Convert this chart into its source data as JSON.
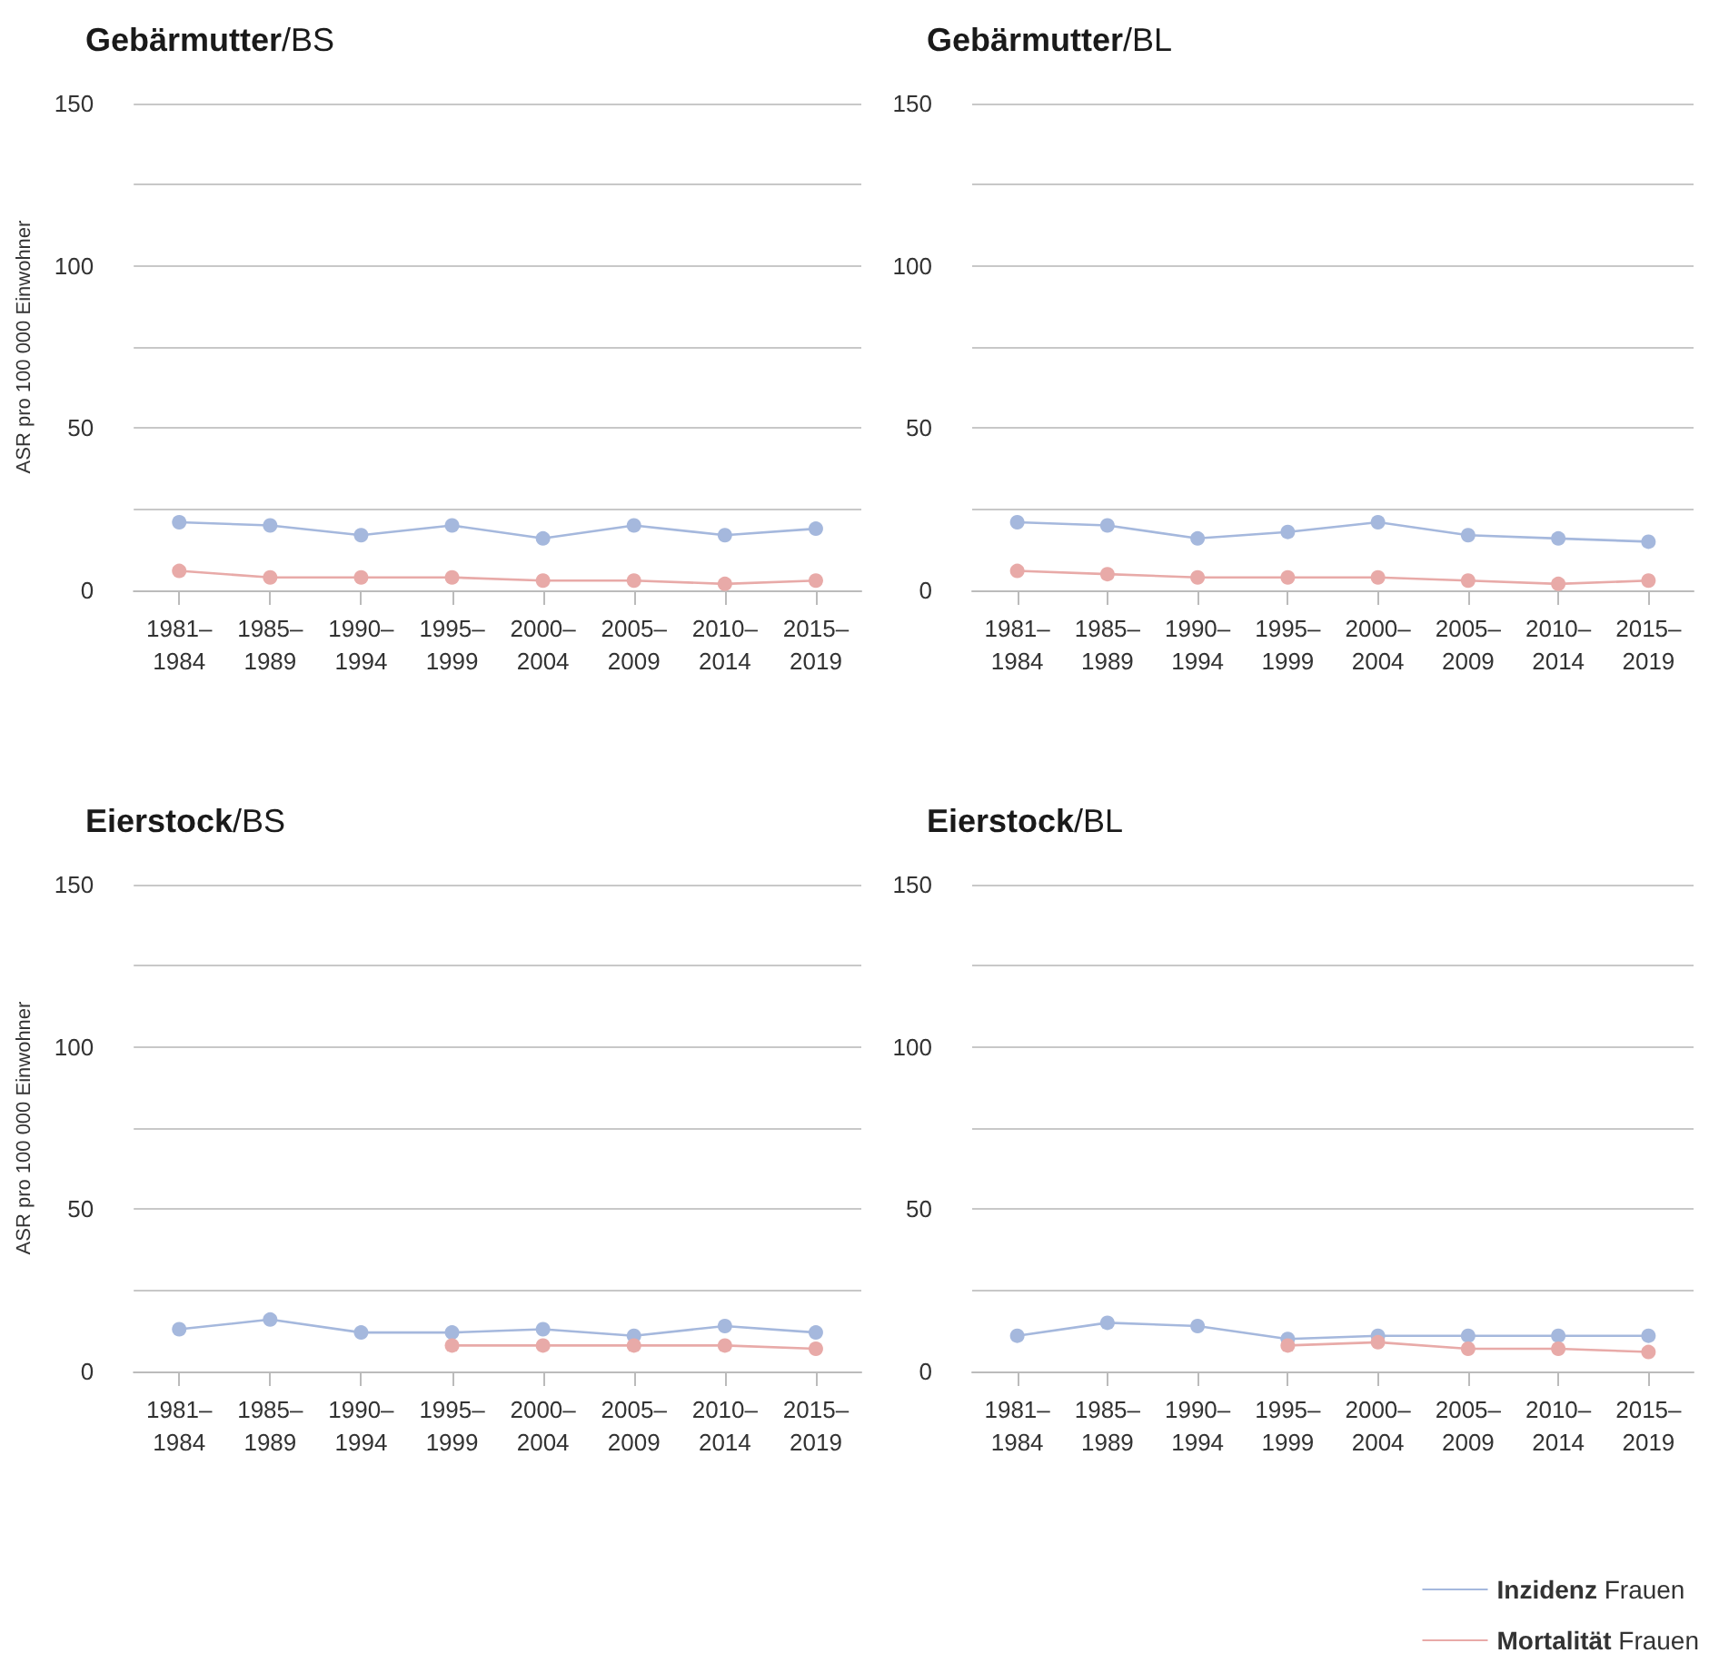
{
  "chart_data": [
    {
      "type": "line",
      "title": "Gebärmutter/BS",
      "ylabel": "ASR pro 100 000 Einwohner",
      "categories": [
        "1981–1984",
        "1985–1989",
        "1990–1994",
        "1995–1999",
        "2000–2004",
        "2005–2009",
        "2010–2014",
        "2015–2019"
      ],
      "ylim": [
        0,
        150
      ],
      "yticks": [
        0,
        {
          "value": 25,
          "label": null
        },
        50,
        {
          "value": 75,
          "label": null
        },
        100,
        {
          "value": 125,
          "label": null
        },
        150
      ],
      "grid": "y",
      "marker": "circle",
      "legend": false,
      "series": [
        {
          "color": "#a5b8dd",
          "values": [
            21,
            20,
            17,
            20,
            16,
            20,
            17,
            19
          ]
        },
        {
          "color": "#e8aaa8",
          "values": [
            6,
            4,
            4,
            4,
            3,
            3,
            2,
            3
          ]
        }
      ]
    },
    {
      "type": "line",
      "title": "Gebärmutter/BL",
      "categories": [
        "1981–1984",
        "1985–1989",
        "1990–1994",
        "1995–1999",
        "2000–2004",
        "2005–2009",
        "2010–2014",
        "2015–2019"
      ],
      "ylim": [
        0,
        150
      ],
      "yticks": [
        0,
        {
          "value": 25,
          "label": null
        },
        50,
        {
          "value": 75,
          "label": null
        },
        100,
        {
          "value": 125,
          "label": null
        },
        150
      ],
      "grid": "y",
      "marker": "circle",
      "legend": false,
      "series": [
        {
          "color": "#a5b8dd",
          "values": [
            21,
            20,
            16,
            18,
            21,
            17,
            16,
            15
          ]
        },
        {
          "color": "#e8aaa8",
          "values": [
            6,
            5,
            4,
            4,
            4,
            3,
            2,
            3
          ]
        }
      ]
    },
    {
      "type": "line",
      "title": "Eierstock/BS",
      "ylabel": "ASR pro 100 000 Einwohner",
      "categories": [
        "1981–1984",
        "1985–1989",
        "1990–1994",
        "1995–1999",
        "2000–2004",
        "2005–2009",
        "2010–2014",
        "2015–2019"
      ],
      "ylim": [
        0,
        150
      ],
      "yticks": [
        0,
        {
          "value": 25,
          "label": null
        },
        50,
        {
          "value": 75,
          "label": null
        },
        100,
        {
          "value": 125,
          "label": null
        },
        150
      ],
      "grid": "y",
      "marker": "circle",
      "legend": false,
      "series": [
        {
          "color": "#a5b8dd",
          "values": [
            13,
            16,
            12,
            12,
            13,
            11,
            14,
            12
          ]
        },
        {
          "color": "#e8aaa8",
          "values": [
            null,
            null,
            null,
            8,
            8,
            8,
            8,
            7
          ]
        }
      ]
    },
    {
      "type": "line",
      "title": "Eierstock/BL",
      "categories": [
        "1981–1984",
        "1985–1989",
        "1990–1994",
        "1995–1999",
        "2000–2004",
        "2005–2009",
        "2010–2014",
        "2015–2019"
      ],
      "ylim": [
        0,
        150
      ],
      "yticks": [
        0,
        {
          "value": 25,
          "label": null
        },
        50,
        {
          "value": 75,
          "label": null
        },
        100,
        {
          "value": 125,
          "label": null
        },
        150
      ],
      "grid": "y",
      "marker": "circle",
      "legend": "bottom right",
      "series": [
        {
          "name": "Inzidenz Frauen",
          "color": "#a5b8dd",
          "values": [
            11,
            15,
            14,
            10,
            11,
            11,
            11,
            11
          ]
        },
        {
          "name": "Mortalität Frauen",
          "color": "#e8aaa8",
          "values": [
            null,
            null,
            null,
            8,
            9,
            7,
            7,
            6
          ]
        }
      ]
    }
  ]
}
